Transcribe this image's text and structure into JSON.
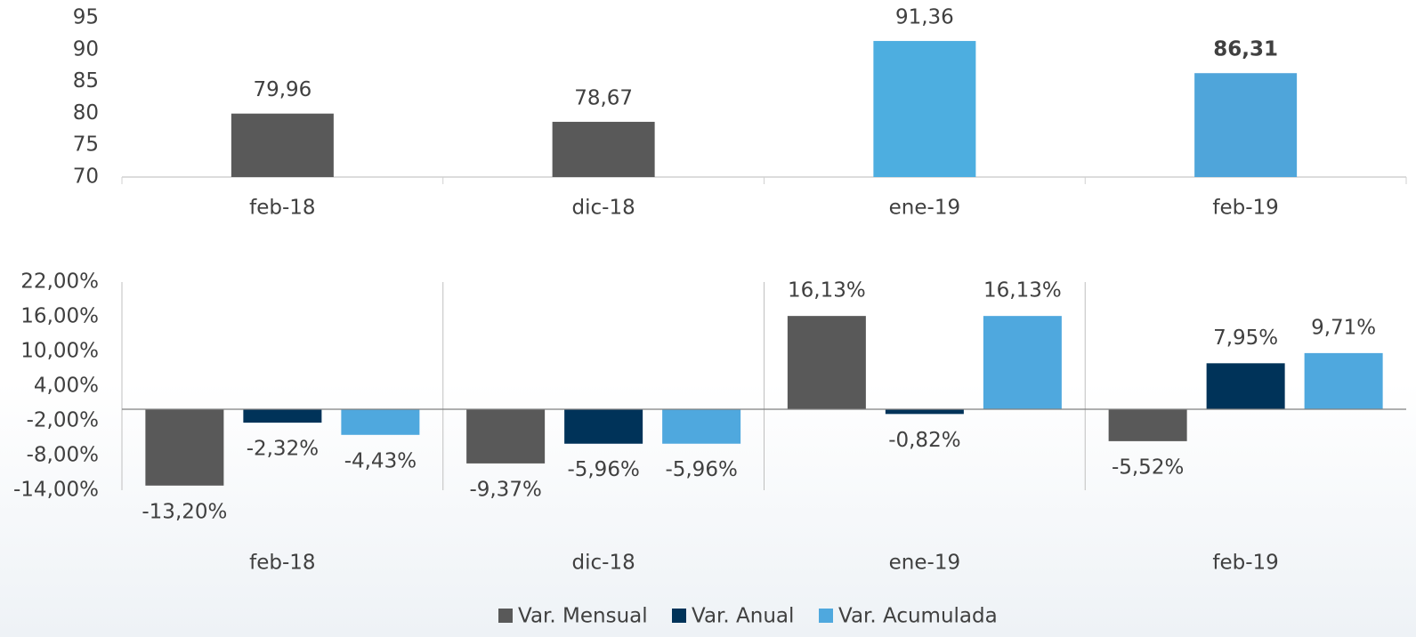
{
  "chart_data": [
    {
      "type": "bar",
      "categories": [
        "feb-18",
        "dic-18",
        "ene-19",
        "feb-19"
      ],
      "values": [
        79.96,
        78.67,
        91.36,
        86.31
      ],
      "value_labels": [
        "79,96",
        "78,67",
        "91,36",
        "86,31"
      ],
      "colors": [
        "#595959",
        "#595959",
        "#4daee0",
        "#4fa5da"
      ],
      "ylim": [
        70,
        95
      ],
      "yticks": [
        70,
        75,
        80,
        85,
        90,
        95
      ]
    },
    {
      "type": "grouped_bar",
      "categories": [
        "feb-18",
        "dic-18",
        "ene-19",
        "feb-19"
      ],
      "series": [
        {
          "name": "Var. Mensual",
          "color": "#595959",
          "values": [
            -13.2,
            -9.37,
            16.13,
            -5.52
          ],
          "value_labels": [
            "-13,20%",
            "-9,37%",
            "16,13%",
            "-5,52%"
          ]
        },
        {
          "name": "Var. Anual",
          "color": "#003359",
          "values": [
            -2.32,
            -5.96,
            -0.82,
            7.95
          ],
          "value_labels": [
            "-2,32%",
            "-5,96%",
            "-0,82%",
            "7,95%"
          ]
        },
        {
          "name": "Var. Acumulada",
          "color": "#4fa8de",
          "values": [
            -4.43,
            -5.96,
            16.13,
            9.71
          ],
          "value_labels": [
            "-4,43%",
            "-5,96%",
            "16,13%",
            "9,71%"
          ]
        }
      ],
      "ylim": [
        -14,
        22
      ],
      "yticks": [
        {
          "value": -14,
          "label": "-14,00%"
        },
        {
          "value": -8,
          "label": "-8,00%"
        },
        {
          "value": -2,
          "label": "-2,00%"
        },
        {
          "value": 4,
          "label": "4,00%"
        },
        {
          "value": 10,
          "label": "10,00%"
        },
        {
          "value": 16,
          "label": "16,00%"
        },
        {
          "value": 22,
          "label": "22,00%"
        }
      ],
      "legend": "bottom"
    }
  ]
}
